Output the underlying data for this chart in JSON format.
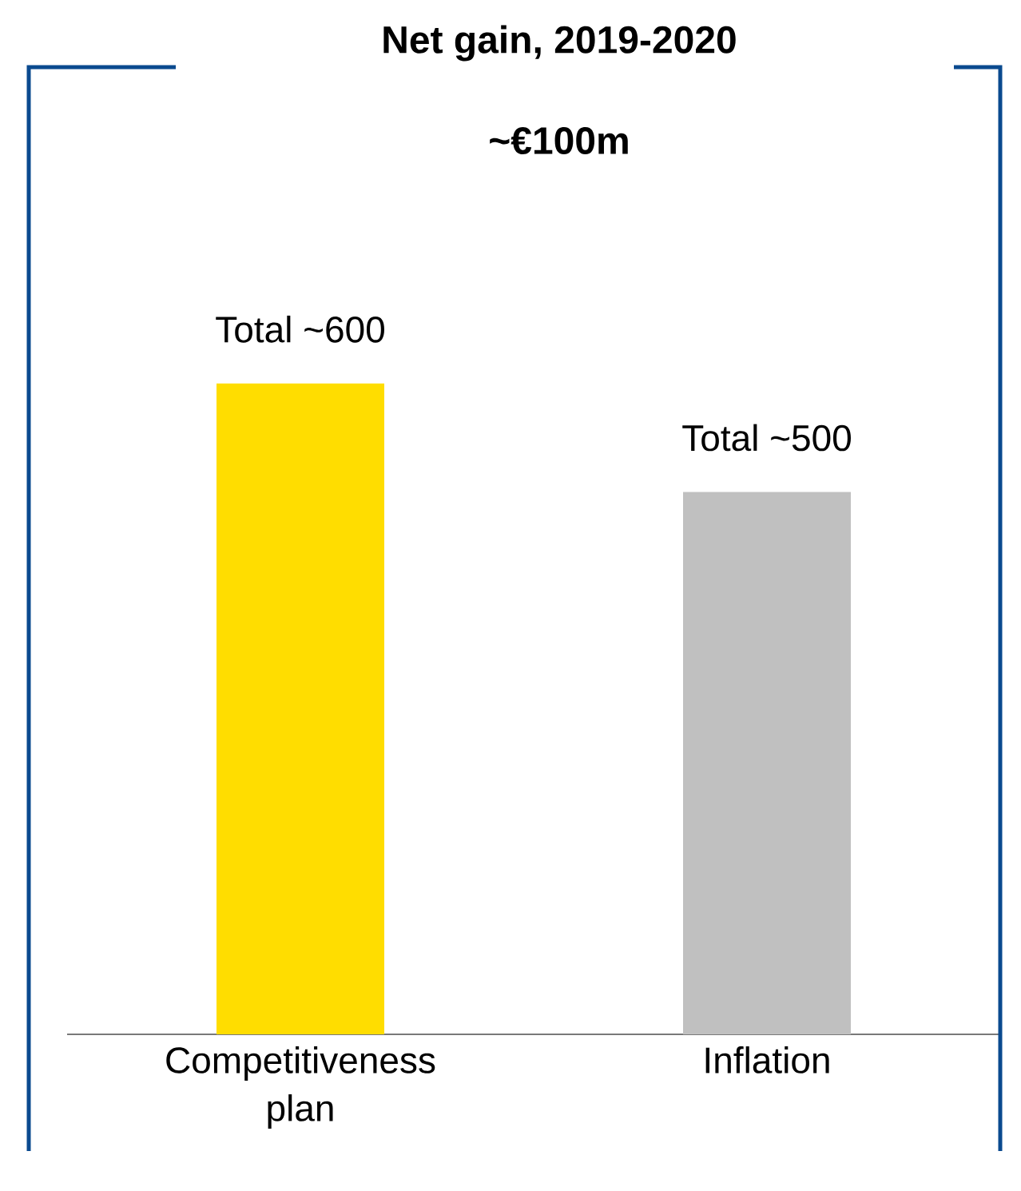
{
  "chart_data": {
    "type": "bar",
    "title": "Net gain, 2019-2020",
    "subtitle": "~€100m",
    "categories": [
      "Competitiveness plan",
      "Inflation"
    ],
    "values": [
      600,
      500
    ],
    "colors": [
      "#ffdd00",
      "#c0c0c0"
    ],
    "value_labels": [
      "Total ~600",
      "Total ~500"
    ]
  }
}
